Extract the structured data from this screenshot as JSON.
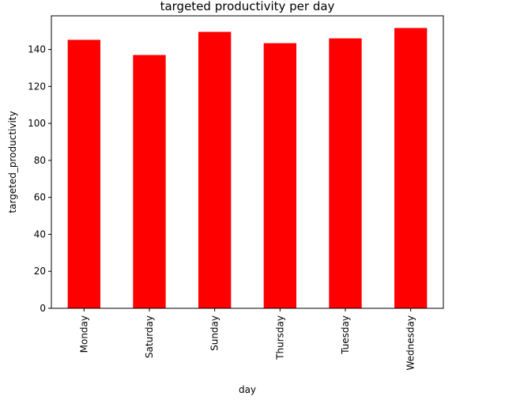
{
  "chart_data": {
    "type": "bar",
    "title": "targeted productivity per day",
    "xlabel": "day",
    "ylabel": "targeted_productivity",
    "categories": [
      "Monday",
      "Saturday",
      "Sunday",
      "Thursday",
      "Tuesday",
      "Wednesday"
    ],
    "values": [
      145.2,
      137.0,
      149.5,
      143.4,
      146.0,
      151.6
    ],
    "ylim": [
      0,
      158.2
    ],
    "yticks": [
      0,
      20,
      40,
      60,
      80,
      100,
      120,
      140
    ],
    "bar_color": "#ff0000",
    "grid": false,
    "legend": "none"
  }
}
